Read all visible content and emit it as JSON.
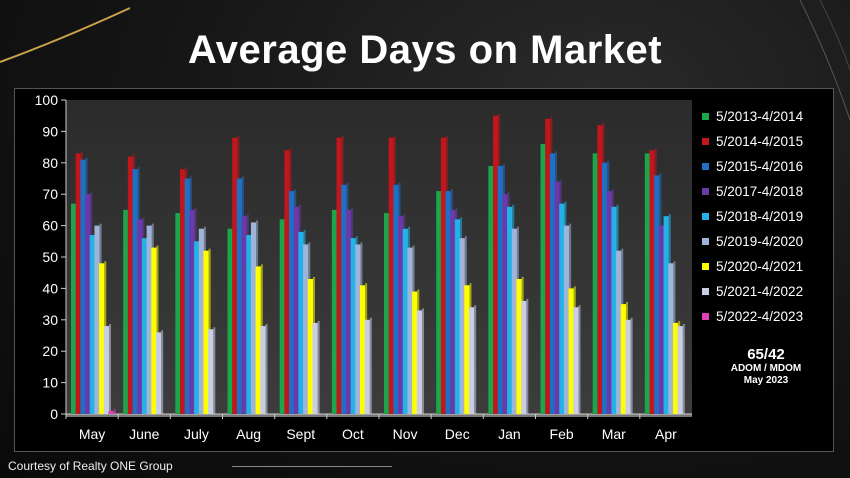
{
  "title": "Average Days on Market",
  "credit": "Courtesy of Realty ONE Group",
  "stats": {
    "value": "65/42",
    "label": "ADOM / MDOM",
    "period": "May 2023"
  },
  "chart_data": {
    "type": "bar",
    "title": "Average Days on Market",
    "categories": [
      "May",
      "June",
      "July",
      "Aug",
      "Sept",
      "Oct",
      "Nov",
      "Dec",
      "Jan",
      "Feb",
      "Mar",
      "Apr"
    ],
    "ylim": [
      0,
      100
    ],
    "yticks": [
      0,
      10,
      20,
      30,
      40,
      50,
      60,
      70,
      80,
      90,
      100
    ],
    "grid": false,
    "legend_position": "right",
    "series": [
      {
        "name": "5/2013-4/2014",
        "color": "#1aa64a",
        "values": [
          67,
          65,
          64,
          59,
          62,
          65,
          64,
          71,
          79,
          86,
          83,
          83
        ]
      },
      {
        "name": "5/2014-4/2015",
        "color": "#c0161c",
        "values": [
          83,
          82,
          78,
          88,
          84,
          88,
          88,
          88,
          95,
          94,
          92,
          84
        ]
      },
      {
        "name": "5/2015-4/2016",
        "color": "#1f6fc4",
        "values": [
          81,
          78,
          75,
          75,
          71,
          73,
          73,
          71,
          79,
          83,
          80,
          76
        ]
      },
      {
        "name": "5/2017-4/2018",
        "color": "#6a3aa8",
        "values": [
          70,
          62,
          65,
          63,
          66,
          65,
          63,
          65,
          70,
          74,
          71,
          60
        ]
      },
      {
        "name": "5/2018-4/2019",
        "color": "#22b2e8",
        "values": [
          57,
          56,
          55,
          57,
          58,
          56,
          59,
          62,
          66,
          67,
          66,
          63
        ]
      },
      {
        "name": "5/2019-4/2020",
        "color": "#9fb4d8",
        "values": [
          60,
          60,
          59,
          61,
          54,
          54,
          53,
          56,
          59,
          60,
          52,
          48
        ]
      },
      {
        "name": "5/2020-4/2021",
        "color": "#ffff00",
        "values": [
          48,
          53,
          52,
          47,
          43,
          41,
          39,
          41,
          43,
          40,
          35,
          29
        ]
      },
      {
        "name": "5/2021-4/2022",
        "color": "#c9cde6",
        "values": [
          28,
          26,
          27,
          28,
          29,
          30,
          33,
          34,
          36,
          34,
          30,
          28
        ]
      },
      {
        "name": "5/2022-4/2023",
        "color": "#e040b8",
        "values": [
          1,
          0,
          0,
          0,
          0,
          0,
          0,
          0,
          0,
          0,
          0,
          0
        ]
      }
    ]
  }
}
